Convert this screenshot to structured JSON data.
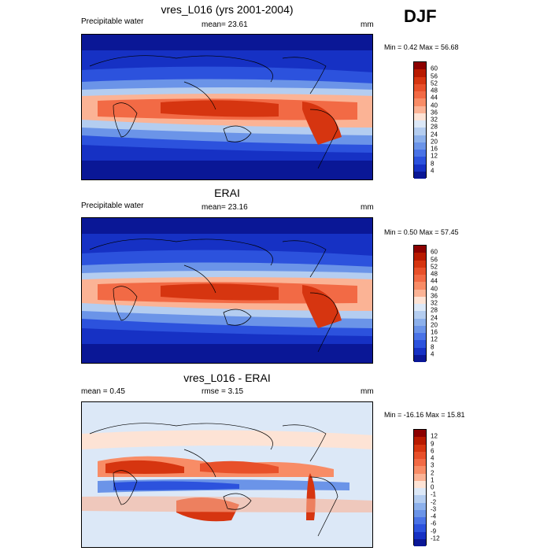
{
  "season": "DJF",
  "panels": [
    {
      "title": "vres_L016 (yrs 2001-2004)",
      "left_label": "Precipitable water",
      "center_label": "mean=  23.61",
      "units": "mm",
      "minmax": "Min =   0.42 Max =  56.68"
    },
    {
      "title": "ERAI",
      "left_label": "Precipitable water",
      "center_label": "mean=  23.16",
      "units": "mm",
      "minmax": "Min =   0.50 Max =  57.45"
    },
    {
      "title": "vres_L016 - ERAI",
      "left_label": "mean =   0.45",
      "center_label": "rmse =   3.15",
      "units": "mm",
      "minmax": "Min = -16.16 Max =  15.81"
    }
  ],
  "colorbars": {
    "absolute": {
      "labels": [
        "60",
        "56",
        "52",
        "48",
        "44",
        "40",
        "36",
        "32",
        "28",
        "24",
        "20",
        "16",
        "12",
        "8",
        "4"
      ],
      "colors": [
        "#8c0000",
        "#b81a00",
        "#d63510",
        "#e8502a",
        "#f26a45",
        "#f88c66",
        "#fbb395",
        "#fde3d5",
        "#dce8f7",
        "#b4cdf0",
        "#8cb0eb",
        "#6b94e8",
        "#4a73e6",
        "#2c52dd",
        "#1631c4",
        "#0a1796"
      ]
    },
    "difference": {
      "labels": [
        "12",
        "9",
        "6",
        "4",
        "3",
        "2",
        "1",
        "0",
        "-1",
        "-2",
        "-3",
        "-4",
        "-6",
        "-9",
        "-12"
      ],
      "colors": [
        "#8c0000",
        "#b81a00",
        "#d63510",
        "#e8502a",
        "#f26a45",
        "#f88c66",
        "#fbb395",
        "#fde3d5",
        "#dce8f7",
        "#b4cdf0",
        "#8cb0eb",
        "#6b94e8",
        "#4a73e6",
        "#2c52dd",
        "#1631c4",
        "#0a1796"
      ]
    }
  },
  "chart_data": [
    {
      "type": "heatmap",
      "title": "vres_L016 (yrs 2001-2004)",
      "variable": "Precipitable water",
      "units": "mm",
      "mean": 23.61,
      "min": 0.42,
      "max": 56.68,
      "levels": [
        4,
        8,
        12,
        16,
        20,
        24,
        28,
        32,
        36,
        40,
        44,
        48,
        52,
        56,
        60
      ]
    },
    {
      "type": "heatmap",
      "title": "ERAI",
      "variable": "Precipitable water",
      "units": "mm",
      "mean": 23.16,
      "min": 0.5,
      "max": 57.45,
      "levels": [
        4,
        8,
        12,
        16,
        20,
        24,
        28,
        32,
        36,
        40,
        44,
        48,
        52,
        56,
        60
      ]
    },
    {
      "type": "heatmap",
      "title": "vres_L016 - ERAI",
      "units": "mm",
      "mean": 0.45,
      "rmse": 3.15,
      "min": -16.16,
      "max": 15.81,
      "levels": [
        -12,
        -9,
        -6,
        -4,
        -3,
        -2,
        -1,
        0,
        1,
        2,
        3,
        4,
        6,
        9,
        12
      ]
    }
  ]
}
